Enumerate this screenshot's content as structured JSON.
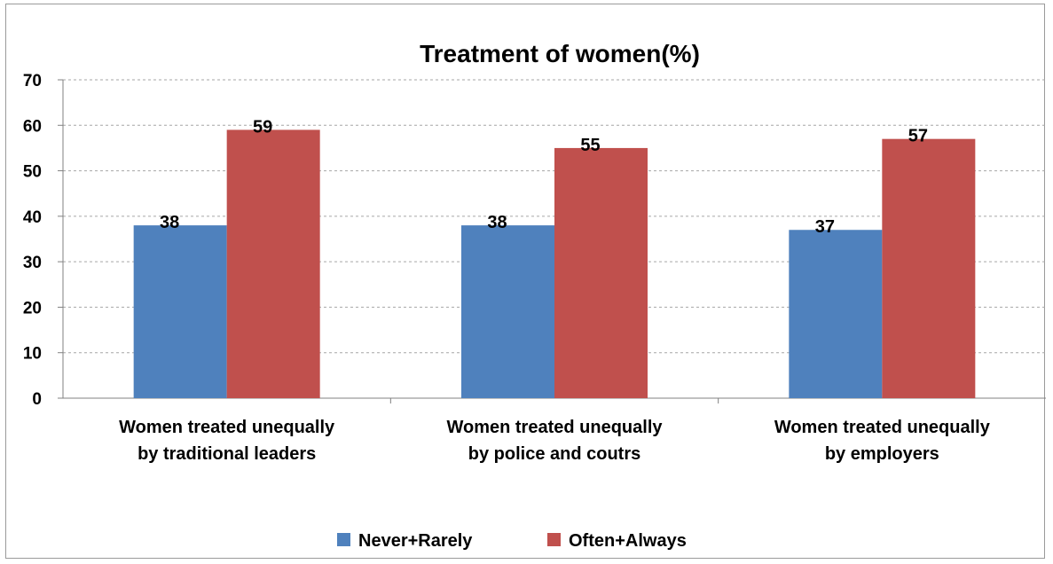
{
  "chart_data": {
    "type": "bar",
    "title": "Treatment of women(%)",
    "categories": [
      [
        "Women treated unequally",
        "by traditional leaders"
      ],
      [
        "Women treated unequally",
        "by police and coutrs"
      ],
      [
        "Women treated unequally",
        "by employers"
      ]
    ],
    "series": [
      {
        "name": "Never+Rarely",
        "values": [
          38,
          38,
          37
        ],
        "color": "#4f81bd"
      },
      {
        "name": "Often+Always",
        "values": [
          59,
          55,
          57
        ],
        "color": "#c0504d"
      }
    ],
    "ylim": [
      0,
      70
    ],
    "yticks": [
      0,
      10,
      20,
      30,
      40,
      50,
      60,
      70
    ],
    "grid": true,
    "legend_position": "bottom",
    "data_labels": true
  }
}
